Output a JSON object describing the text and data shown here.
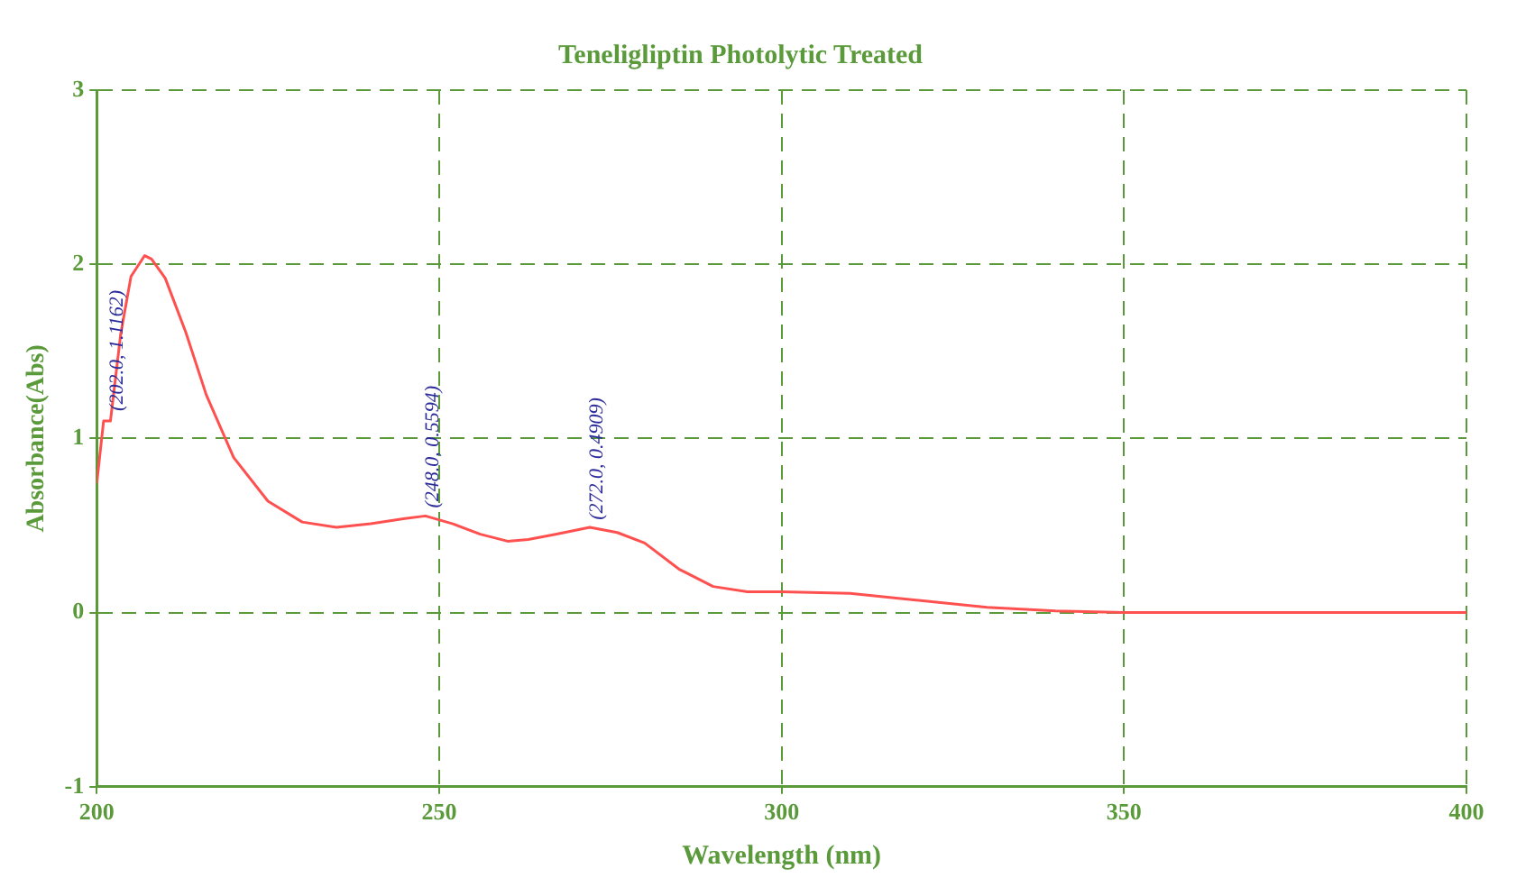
{
  "chart_data": {
    "type": "line",
    "title": "Teneligliptin Photolytic Treated",
    "xlabel": "Wavelength (nm)",
    "ylabel": "Absorbance(Abs)",
    "x": [
      200,
      201,
      202,
      203.5,
      205,
      207,
      208,
      210,
      213,
      216,
      220,
      225,
      230,
      235,
      240,
      245,
      248,
      252,
      256,
      260,
      263,
      267,
      272,
      276,
      280,
      285,
      290,
      295,
      300,
      310,
      320,
      330,
      340,
      350,
      375,
      400
    ],
    "series": [
      {
        "color": "#ff5050",
        "values": [
          0.74,
          1.1,
          1.1,
          1.6,
          1.93,
          2.05,
          2.03,
          1.92,
          1.61,
          1.25,
          0.89,
          0.64,
          0.52,
          0.49,
          0.51,
          0.54,
          0.555,
          0.51,
          0.45,
          0.41,
          0.42,
          0.45,
          0.49,
          0.46,
          0.4,
          0.25,
          0.15,
          0.12,
          0.12,
          0.11,
          0.07,
          0.03,
          0.01,
          0,
          0,
          0
        ]
      }
    ],
    "xlim": [
      200,
      400
    ],
    "xticks": [
      200,
      250,
      300,
      350,
      400
    ],
    "ylim": [
      -1,
      3
    ],
    "yticks": [
      -1,
      0,
      1,
      2,
      3
    ],
    "grid": true,
    "legend": false,
    "marker": "none",
    "line_style": "solid",
    "annotations": [
      {
        "text": "(202.0, 1.1162)",
        "x": 202,
        "y": 1.1162
      },
      {
        "text": "(248.0, 0.5594)",
        "x": 248,
        "y": 0.5594
      },
      {
        "text": "(272.0, 0.4909)",
        "x": 272,
        "y": 0.4909
      }
    ]
  }
}
